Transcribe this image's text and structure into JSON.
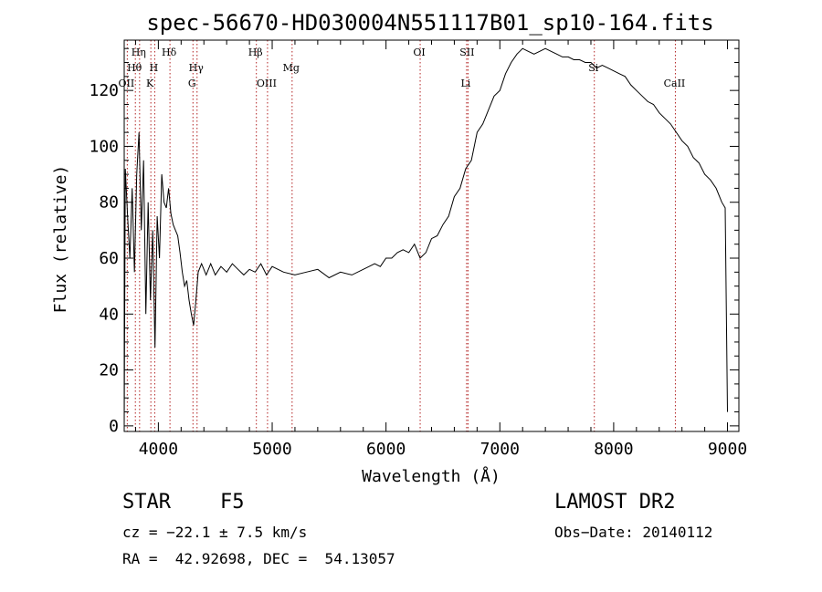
{
  "chart_data": {
    "type": "line",
    "title": "spec-56670-HD030004N551117B01_sp10-164.fits",
    "xlabel": "Wavelength (Å)",
    "ylabel": "Flux (relative)",
    "xlim": [
      3700,
      9100
    ],
    "ylim": [
      -2,
      138
    ],
    "x_ticks": [
      4000,
      5000,
      6000,
      7000,
      8000,
      9000
    ],
    "y_ticks": [
      0,
      20,
      40,
      60,
      80,
      100,
      120
    ],
    "grid": false,
    "series": [
      {
        "color": "#000000",
        "x": [
          3700,
          3710,
          3730,
          3750,
          3770,
          3790,
          3810,
          3830,
          3850,
          3870,
          3890,
          3910,
          3930,
          3950,
          3970,
          3990,
          4010,
          4030,
          4050,
          4070,
          4090,
          4110,
          4130,
          4150,
          4170,
          4190,
          4210,
          4230,
          4250,
          4270,
          4290,
          4310,
          4330,
          4350,
          4380,
          4420,
          4460,
          4500,
          4550,
          4600,
          4650,
          4700,
          4750,
          4800,
          4850,
          4900,
          4950,
          5000,
          5100,
          5200,
          5300,
          5400,
          5500,
          5600,
          5700,
          5800,
          5850,
          5900,
          5950,
          6000,
          6050,
          6100,
          6150,
          6200,
          6250,
          6300,
          6350,
          6400,
          6450,
          6500,
          6550,
          6600,
          6650,
          6700,
          6750,
          6800,
          6850,
          6900,
          6950,
          7000,
          7050,
          7100,
          7150,
          7200,
          7250,
          7300,
          7350,
          7400,
          7450,
          7500,
          7550,
          7600,
          7650,
          7700,
          7750,
          7800,
          7850,
          7900,
          7950,
          8000,
          8050,
          8100,
          8150,
          8200,
          8250,
          8300,
          8350,
          8400,
          8450,
          8500,
          8550,
          8600,
          8650,
          8700,
          8750,
          8800,
          8850,
          8900,
          8950,
          8980,
          9000
        ],
        "y": [
          0,
          92,
          75,
          60,
          85,
          55,
          90,
          105,
          70,
          95,
          40,
          80,
          45,
          70,
          28,
          75,
          60,
          90,
          80,
          78,
          85,
          76,
          72,
          70,
          68,
          62,
          55,
          50,
          52,
          45,
          40,
          36,
          45,
          55,
          58,
          54,
          58,
          54,
          57,
          55,
          58,
          56,
          54,
          56,
          55,
          58,
          54,
          57,
          55,
          54,
          55,
          56,
          53,
          55,
          54,
          56,
          57,
          58,
          57,
          60,
          60,
          62,
          63,
          62,
          65,
          60,
          62,
          67,
          68,
          72,
          75,
          82,
          85,
          92,
          95,
          105,
          108,
          113,
          118,
          120,
          126,
          130,
          133,
          135,
          134,
          133,
          134,
          135,
          134,
          133,
          132,
          132,
          131,
          131,
          130,
          130,
          128,
          129,
          128,
          127,
          126,
          125,
          122,
          120,
          118,
          116,
          115,
          112,
          110,
          108,
          105,
          102,
          100,
          96,
          94,
          90,
          88,
          85,
          80,
          78,
          5
        ]
      }
    ],
    "line_markers": [
      {
        "wavelength": 3727,
        "label": "OII",
        "row": 3
      },
      {
        "wavelength": 3798,
        "label": "Hθ",
        "row": 2
      },
      {
        "wavelength": 3835,
        "label": "Hη",
        "row": 1
      },
      {
        "wavelength": 3934,
        "label": "K",
        "row": 3
      },
      {
        "wavelength": 3968,
        "label": "H",
        "row": 2
      },
      {
        "wavelength": 4102,
        "label": "Hδ",
        "row": 1
      },
      {
        "wavelength": 4304,
        "label": "G",
        "row": 3
      },
      {
        "wavelength": 4340,
        "label": "Hγ",
        "row": 2
      },
      {
        "wavelength": 4861,
        "label": "Hβ",
        "row": 1
      },
      {
        "wavelength": 4959,
        "label": "OIII",
        "row": 3
      },
      {
        "wavelength": 5175,
        "label": "Mg",
        "row": 2
      },
      {
        "wavelength": 6300,
        "label": "OI",
        "row": 1
      },
      {
        "wavelength": 6708,
        "label": "Li",
        "row": 3
      },
      {
        "wavelength": 6720,
        "label": "SII",
        "row": 1
      },
      {
        "wavelength": 7830,
        "label": "Si",
        "row": 2
      },
      {
        "wavelength": 8542,
        "label": "CaII",
        "row": 3
      }
    ]
  },
  "footer": {
    "object_class": "STAR",
    "subclass": "F5",
    "survey": "LAMOST DR2",
    "cz": "cz = −22.1 ± 7.5 km/s",
    "obs_date": "Obs−Date: 20140112",
    "coords": "RA =  42.92698, DEC =  54.13057"
  }
}
